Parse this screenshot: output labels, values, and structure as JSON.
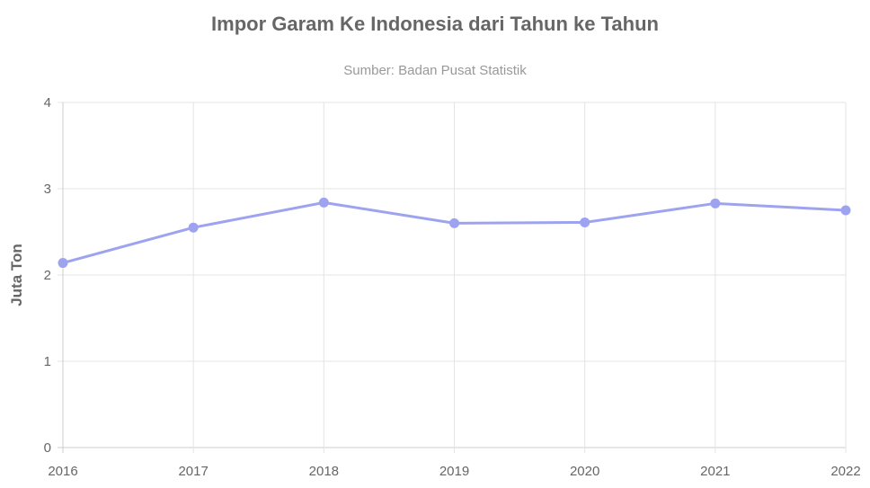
{
  "chart_data": {
    "type": "line",
    "title": "Impor Garam Ke Indonesia dari Tahun ke Tahun",
    "subtitle": "Sumber: Badan Pusat Statistik",
    "xlabel": "",
    "ylabel": "Juta Ton",
    "categories": [
      "2016",
      "2017",
      "2018",
      "2019",
      "2020",
      "2021",
      "2022"
    ],
    "values": [
      2.14,
      2.55,
      2.84,
      2.6,
      2.61,
      2.83,
      2.75
    ],
    "ylim": [
      0,
      4
    ],
    "yticks": [
      0,
      1,
      2,
      3,
      4
    ],
    "grid": true,
    "legend": "none",
    "line_color": "#9ea3f0"
  }
}
